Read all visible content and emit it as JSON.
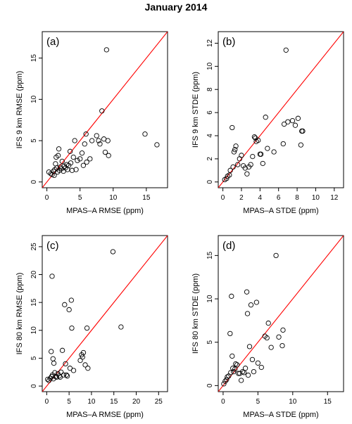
{
  "title": "January 2014",
  "chart_data": [
    {
      "type": "scatter",
      "panel_label": "(a)",
      "xlabel": "MPAS–A RMSE (ppm)",
      "ylabel": "IFS 9 km RMSE (ppm)",
      "xlim": [
        -0.7,
        18.2
      ],
      "ylim": [
        -0.7,
        18.2
      ],
      "xticks": [
        0,
        5,
        10,
        15
      ],
      "yticks": [
        0,
        5,
        10,
        15
      ],
      "reference_line": "y = x",
      "reference_line_color": "#ff0000",
      "points": [
        [
          0.3,
          1.2
        ],
        [
          0.6,
          1.0
        ],
        [
          0.8,
          0.9
        ],
        [
          1.0,
          1.3
        ],
        [
          1.1,
          0.8
        ],
        [
          1.2,
          1.5
        ],
        [
          1.3,
          2.2
        ],
        [
          1.4,
          3.0
        ],
        [
          1.5,
          1.7
        ],
        [
          1.6,
          1.2
        ],
        [
          1.7,
          3.2
        ],
        [
          1.8,
          4.0
        ],
        [
          1.9,
          1.4
        ],
        [
          2.0,
          1.8
        ],
        [
          2.2,
          1.6
        ],
        [
          2.3,
          2.5
        ],
        [
          2.5,
          1.3
        ],
        [
          2.6,
          1.9
        ],
        [
          2.8,
          1.7
        ],
        [
          3.0,
          2.1
        ],
        [
          3.1,
          1.5
        ],
        [
          3.3,
          2.0
        ],
        [
          3.5,
          3.7
        ],
        [
          3.6,
          2.3
        ],
        [
          3.8,
          1.4
        ],
        [
          4.0,
          3.0
        ],
        [
          4.2,
          5.0
        ],
        [
          4.4,
          1.5
        ],
        [
          4.6,
          2.6
        ],
        [
          5.0,
          2.8
        ],
        [
          5.3,
          3.5
        ],
        [
          5.5,
          2.0
        ],
        [
          5.7,
          4.6
        ],
        [
          5.9,
          5.8
        ],
        [
          6.0,
          2.4
        ],
        [
          6.5,
          2.8
        ],
        [
          6.8,
          5.0
        ],
        [
          7.5,
          5.6
        ],
        [
          7.8,
          5.0
        ],
        [
          8.0,
          4.6
        ],
        [
          8.3,
          8.6
        ],
        [
          8.6,
          5.2
        ],
        [
          8.8,
          3.6
        ],
        [
          9.0,
          16.0
        ],
        [
          9.2,
          5.0
        ],
        [
          9.3,
          3.2
        ],
        [
          14.8,
          5.8
        ],
        [
          16.6,
          4.5
        ]
      ]
    },
    {
      "type": "scatter",
      "panel_label": "(b)",
      "xlabel": "MPAS–A STDE (ppm)",
      "ylabel": "IFS 9 km STDE (ppm)",
      "xlim": [
        -0.5,
        13.0
      ],
      "ylim": [
        -0.5,
        13.0
      ],
      "xticks": [
        0,
        2,
        4,
        6,
        8,
        10,
        12
      ],
      "yticks": [
        0,
        2,
        4,
        6,
        8,
        10,
        12
      ],
      "reference_line": "y = x",
      "reference_line_color": "#ff0000",
      "points": [
        [
          0.2,
          0.2
        ],
        [
          0.4,
          0.3
        ],
        [
          0.5,
          0.5
        ],
        [
          0.7,
          0.6
        ],
        [
          0.8,
          1.0
        ],
        [
          1.0,
          4.7
        ],
        [
          1.1,
          1.3
        ],
        [
          1.2,
          2.6
        ],
        [
          1.3,
          2.8
        ],
        [
          1.4,
          3.1
        ],
        [
          1.6,
          1.5
        ],
        [
          1.8,
          2.0
        ],
        [
          2.0,
          2.3
        ],
        [
          2.2,
          1.4
        ],
        [
          2.4,
          1.2
        ],
        [
          2.6,
          0.7
        ],
        [
          2.8,
          1.3
        ],
        [
          3.0,
          1.5
        ],
        [
          3.2,
          2.2
        ],
        [
          3.4,
          3.9
        ],
        [
          3.5,
          3.8
        ],
        [
          3.6,
          3.5
        ],
        [
          3.8,
          3.6
        ],
        [
          4.0,
          2.4
        ],
        [
          4.1,
          2.4
        ],
        [
          4.3,
          1.6
        ],
        [
          4.6,
          5.6
        ],
        [
          4.8,
          2.9
        ],
        [
          5.5,
          2.6
        ],
        [
          6.5,
          3.3
        ],
        [
          6.6,
          5.0
        ],
        [
          6.8,
          11.4
        ],
        [
          7.0,
          5.2
        ],
        [
          7.5,
          5.3
        ],
        [
          7.8,
          4.9
        ],
        [
          8.1,
          5.5
        ],
        [
          8.4,
          3.2
        ],
        [
          8.5,
          4.4
        ],
        [
          8.6,
          4.4
        ]
      ]
    },
    {
      "type": "scatter",
      "panel_label": "(c)",
      "xlabel": "MPAS–A RMSE (ppm)",
      "ylabel": "IFS 80 km RMSE (ppm)",
      "xlim": [
        -1.0,
        27.0
      ],
      "ylim": [
        -1.0,
        27.0
      ],
      "xticks": [
        0,
        5,
        10,
        15,
        20,
        25
      ],
      "yticks": [
        0,
        5,
        10,
        15,
        20,
        25
      ],
      "reference_line": "y = x",
      "reference_line_color": "#ff0000",
      "points": [
        [
          0.2,
          1.2
        ],
        [
          0.5,
          1.0
        ],
        [
          0.8,
          1.4
        ],
        [
          1.0,
          6.2
        ],
        [
          1.1,
          1.7
        ],
        [
          1.2,
          19.7
        ],
        [
          1.3,
          2.0
        ],
        [
          1.4,
          4.9
        ],
        [
          1.5,
          1.3
        ],
        [
          1.6,
          4.1
        ],
        [
          1.8,
          2.4
        ],
        [
          2.0,
          1.7
        ],
        [
          2.2,
          1.6
        ],
        [
          2.5,
          2.2
        ],
        [
          2.8,
          1.8
        ],
        [
          3.0,
          1.6
        ],
        [
          3.2,
          2.5
        ],
        [
          3.5,
          6.4
        ],
        [
          3.8,
          2.0
        ],
        [
          4.0,
          14.6
        ],
        [
          4.2,
          4.0
        ],
        [
          4.4,
          2.0
        ],
        [
          4.6,
          1.8
        ],
        [
          5.0,
          13.7
        ],
        [
          5.2,
          3.2
        ],
        [
          5.5,
          15.4
        ],
        [
          5.6,
          10.4
        ],
        [
          6.0,
          2.8
        ],
        [
          7.5,
          4.6
        ],
        [
          7.8,
          5.6
        ],
        [
          8.0,
          5.2
        ],
        [
          8.2,
          6.0
        ],
        [
          8.6,
          3.8
        ],
        [
          9.0,
          10.4
        ],
        [
          9.2,
          3.2
        ],
        [
          14.8,
          24.1
        ],
        [
          16.6,
          10.6
        ]
      ]
    },
    {
      "type": "scatter",
      "panel_label": "(d)",
      "xlabel": "MPAS–A STDE (ppm)",
      "ylabel": "IFS 80 km STDE (ppm)",
      "xlim": [
        -0.7,
        17.3
      ],
      "ylim": [
        -0.7,
        17.3
      ],
      "xticks": [
        0,
        5,
        10,
        15
      ],
      "yticks": [
        0,
        5,
        10,
        15
      ],
      "reference_line": "y = x",
      "reference_line_color": "#ff0000",
      "points": [
        [
          0.1,
          0.2
        ],
        [
          0.3,
          0.5
        ],
        [
          0.5,
          0.7
        ],
        [
          0.6,
          1.0
        ],
        [
          0.8,
          1.1
        ],
        [
          1.0,
          6.0
        ],
        [
          1.1,
          1.5
        ],
        [
          1.2,
          10.3
        ],
        [
          1.3,
          3.4
        ],
        [
          1.4,
          2.0
        ],
        [
          1.5,
          1.6
        ],
        [
          1.7,
          1.9
        ],
        [
          1.8,
          2.5
        ],
        [
          2.0,
          2.4
        ],
        [
          2.2,
          1.4
        ],
        [
          2.4,
          1.4
        ],
        [
          2.6,
          0.6
        ],
        [
          2.8,
          1.6
        ],
        [
          3.0,
          1.5
        ],
        [
          3.2,
          2.0
        ],
        [
          3.4,
          10.8
        ],
        [
          3.5,
          8.3
        ],
        [
          3.6,
          1.2
        ],
        [
          3.8,
          4.5
        ],
        [
          4.0,
          9.3
        ],
        [
          4.2,
          3.0
        ],
        [
          4.4,
          1.6
        ],
        [
          4.8,
          9.6
        ],
        [
          5.0,
          2.6
        ],
        [
          5.5,
          2.1
        ],
        [
          6.0,
          5.7
        ],
        [
          6.3,
          5.5
        ],
        [
          6.5,
          7.2
        ],
        [
          6.9,
          4.4
        ],
        [
          7.6,
          15.0
        ],
        [
          8.0,
          5.6
        ],
        [
          8.5,
          4.6
        ],
        [
          8.6,
          6.4
        ]
      ]
    }
  ]
}
